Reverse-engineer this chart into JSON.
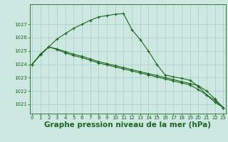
{
  "background_color": "#cce8e0",
  "grid_color": "#aacccc",
  "line_color": "#1a6620",
  "xlabel": "Graphe pression niveau de la mer (hPa)",
  "xlabel_fontsize": 7.5,
  "ylim": [
    1020.3,
    1028.5
  ],
  "xlim": [
    -0.3,
    23.3
  ],
  "yticks": [
    1021,
    1022,
    1023,
    1024,
    1025,
    1026,
    1027
  ],
  "xticks": [
    0,
    1,
    2,
    3,
    4,
    5,
    6,
    7,
    8,
    9,
    10,
    11,
    12,
    13,
    14,
    15,
    16,
    17,
    18,
    19,
    20,
    21,
    22,
    23
  ],
  "series": [
    {
      "x": [
        0,
        1,
        2,
        3,
        4,
        5,
        6,
        7,
        8,
        9,
        10,
        11,
        12,
        13,
        14,
        15,
        16,
        17,
        18,
        19,
        20,
        21,
        22,
        23
      ],
      "y": [
        1024.0,
        1024.7,
        1025.3,
        1025.9,
        1026.3,
        1026.7,
        1027.0,
        1027.3,
        1027.55,
        1027.65,
        1027.75,
        1027.8,
        1026.6,
        1025.85,
        1025.0,
        1024.0,
        1023.2,
        1023.05,
        1022.95,
        1022.8,
        1022.35,
        1021.7,
        1021.15,
        1020.75
      ]
    },
    {
      "x": [
        0,
        1,
        2,
        3,
        4,
        5,
        6,
        7,
        8,
        9,
        10,
        11,
        12,
        13,
        14,
        15,
        16,
        17,
        18,
        19,
        20,
        21,
        22,
        23
      ],
      "y": [
        1024.0,
        1024.75,
        1025.3,
        1025.15,
        1024.95,
        1024.75,
        1024.6,
        1024.4,
        1024.2,
        1024.05,
        1023.9,
        1023.75,
        1023.6,
        1023.45,
        1023.3,
        1023.15,
        1023.0,
        1022.85,
        1022.7,
        1022.55,
        1022.4,
        1022.0,
        1021.4,
        1020.75
      ]
    },
    {
      "x": [
        0,
        1,
        2,
        3,
        4,
        5,
        6,
        7,
        8,
        9,
        10,
        11,
        12,
        13,
        14,
        15,
        16,
        17,
        18,
        19,
        20,
        21,
        22,
        23
      ],
      "y": [
        1024.0,
        1024.75,
        1025.3,
        1025.1,
        1024.85,
        1024.65,
        1024.5,
        1024.3,
        1024.1,
        1023.95,
        1023.8,
        1023.65,
        1023.5,
        1023.35,
        1023.2,
        1023.05,
        1022.9,
        1022.75,
        1022.6,
        1022.45,
        1022.1,
        1021.7,
        1021.3,
        1020.75
      ]
    }
  ]
}
